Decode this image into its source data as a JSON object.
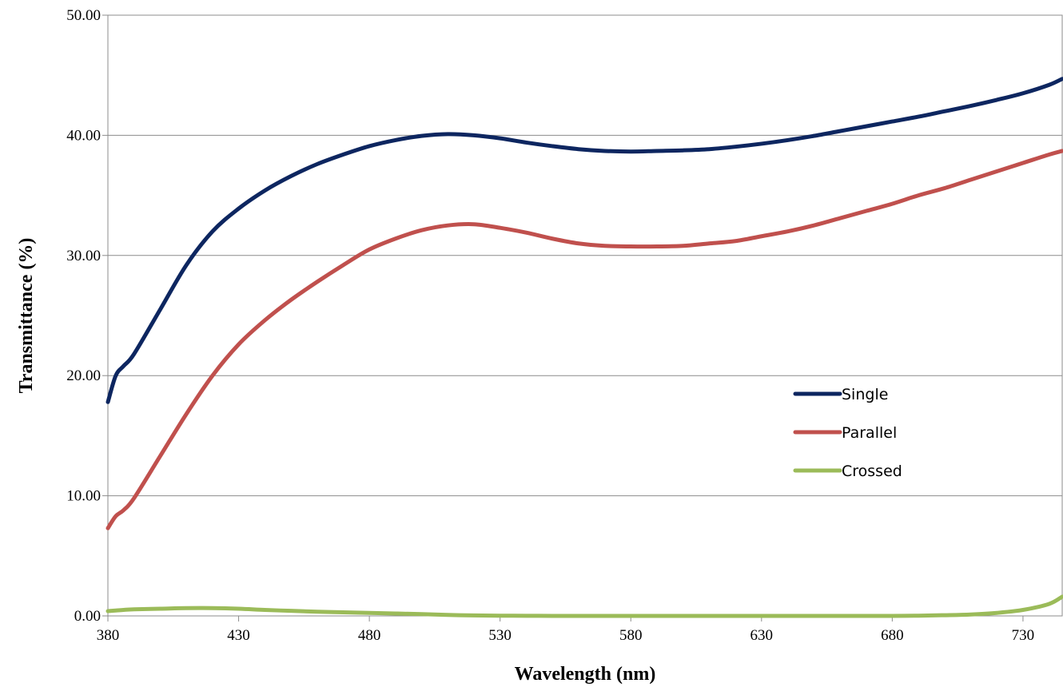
{
  "chart_data": {
    "type": "line",
    "xlabel": "Wavelength (nm)",
    "ylabel": "Transmittance (%)",
    "xlim": [
      380,
      745
    ],
    "ylim": [
      0,
      50
    ],
    "x_ticks": [
      380,
      430,
      480,
      530,
      580,
      630,
      680,
      730
    ],
    "y_ticks": [
      0,
      10,
      20,
      30,
      40,
      50
    ],
    "x_tick_labels": [
      "380",
      "430",
      "480",
      "530",
      "580",
      "630",
      "680",
      "730"
    ],
    "y_tick_labels": [
      "0.00",
      "10.00",
      "20.00",
      "30.00",
      "40.00",
      "50.00"
    ],
    "grid": "horizontal",
    "legend_position": "right",
    "x": [
      380,
      383,
      386,
      390,
      400,
      410,
      420,
      430,
      440,
      450,
      460,
      470,
      480,
      490,
      500,
      510,
      520,
      530,
      540,
      550,
      560,
      570,
      580,
      590,
      600,
      610,
      620,
      630,
      640,
      650,
      660,
      670,
      680,
      690,
      700,
      710,
      720,
      730,
      740,
      745
    ],
    "series": [
      {
        "name": "Single",
        "color": "#0d2660",
        "values": [
          17.8,
          20.0,
          20.8,
          21.8,
          25.5,
          29.2,
          32.0,
          33.9,
          35.4,
          36.6,
          37.6,
          38.4,
          39.1,
          39.6,
          39.95,
          40.1,
          40.0,
          39.75,
          39.4,
          39.1,
          38.85,
          38.7,
          38.65,
          38.7,
          38.75,
          38.85,
          39.05,
          39.3,
          39.6,
          39.95,
          40.35,
          40.75,
          41.15,
          41.55,
          42.0,
          42.45,
          42.95,
          43.5,
          44.2,
          44.7
        ]
      },
      {
        "name": "Parallel",
        "color": "#c0504d",
        "values": [
          7.3,
          8.3,
          8.8,
          9.8,
          13.3,
          16.8,
          20.0,
          22.6,
          24.6,
          26.3,
          27.8,
          29.2,
          30.5,
          31.4,
          32.1,
          32.5,
          32.6,
          32.3,
          31.9,
          31.4,
          31.0,
          30.8,
          30.75,
          30.75,
          30.8,
          31.0,
          31.2,
          31.6,
          32.0,
          32.5,
          33.1,
          33.7,
          34.3,
          35.0,
          35.6,
          36.3,
          37.0,
          37.7,
          38.4,
          38.7
        ]
      },
      {
        "name": "Crossed",
        "color": "#9bbb59",
        "values": [
          0.4,
          0.45,
          0.5,
          0.55,
          0.6,
          0.65,
          0.65,
          0.6,
          0.5,
          0.42,
          0.35,
          0.3,
          0.25,
          0.2,
          0.15,
          0.08,
          0.04,
          0.02,
          0.01,
          0.0,
          0.0,
          0.0,
          0.0,
          0.0,
          0.0,
          0.0,
          0.0,
          0.0,
          0.0,
          0.0,
          0.0,
          0.0,
          0.0,
          0.02,
          0.06,
          0.12,
          0.25,
          0.5,
          1.0,
          1.6
        ]
      }
    ]
  }
}
